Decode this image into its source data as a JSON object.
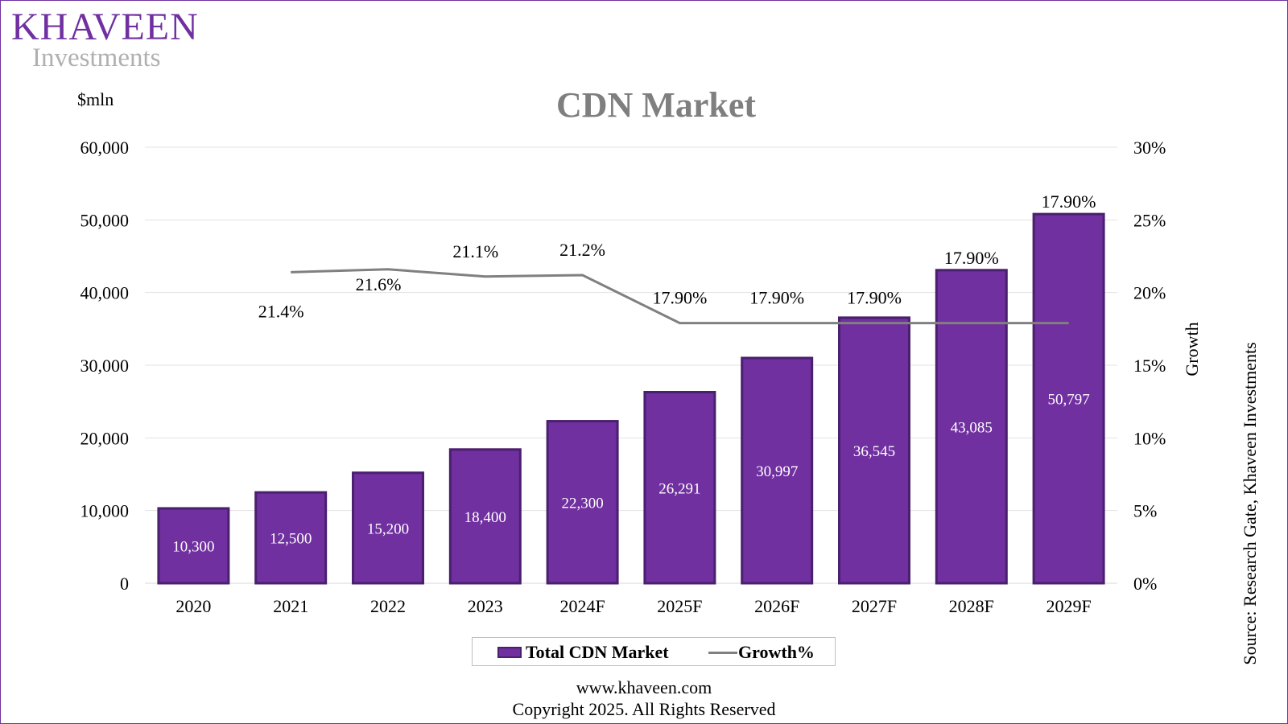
{
  "brand": {
    "name": "Khaveen",
    "name_display": "KHAVEEN",
    "tagline": "Investments",
    "color": "#7030a0"
  },
  "footer": {
    "url": "www.khaveen.com",
    "copyright": "Copyright 2025. All Rights Reserved"
  },
  "legend": {
    "items": [
      {
        "label": "Total CDN Market",
        "marker": "bar",
        "color": "#7030a0"
      },
      {
        "label": "Growth%",
        "marker": "line",
        "color": "#808080"
      }
    ]
  },
  "chart_data": {
    "type": "bar",
    "title": "CDN Market",
    "ylabel": "$mln",
    "y2label": "Growth",
    "source": "Source: Research Gate, Khaveen Investments",
    "categories": [
      "2020",
      "2021",
      "2022",
      "2023",
      "2024F",
      "2025F",
      "2026F",
      "2027F",
      "2028F",
      "2029F"
    ],
    "ylim": [
      0,
      60000
    ],
    "yticks": [
      "0",
      "10,000",
      "20,000",
      "30,000",
      "40,000",
      "50,000",
      "60,000"
    ],
    "y2lim": [
      0,
      30
    ],
    "y2ticks": [
      "0%",
      "5%",
      "10%",
      "15%",
      "20%",
      "25%",
      "30%"
    ],
    "grid": true,
    "legend_position": "bottom",
    "series": [
      {
        "name": "Total CDN Market",
        "type": "bar",
        "axis": "left",
        "color": "#7030a0",
        "values": [
          10300,
          12500,
          15200,
          18400,
          22300,
          26291,
          30997,
          36545,
          43085,
          50797
        ],
        "labels": [
          "10,300",
          "12,500",
          "15,200",
          "18,400",
          "22,300",
          "26,291",
          "30,997",
          "36,545",
          "43,085",
          "50,797"
        ]
      },
      {
        "name": "Growth%",
        "type": "line",
        "axis": "right",
        "color": "#808080",
        "values": [
          null,
          21.4,
          21.6,
          21.1,
          21.2,
          17.9,
          17.9,
          17.9,
          17.9,
          17.9
        ],
        "labels": [
          null,
          "21.4%",
          "21.6%",
          "21.1%",
          "21.2%",
          "17.90%",
          "17.90%",
          "17.90%",
          "17.90%",
          "17.90%"
        ]
      }
    ]
  }
}
